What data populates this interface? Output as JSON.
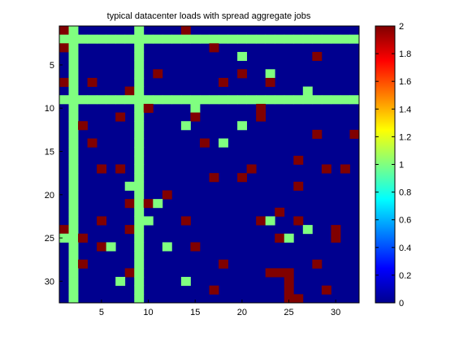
{
  "chart_data": {
    "type": "heatmap",
    "title": "typical datacenter loads with spread aggregate jobs",
    "xlabel": "",
    "ylabel": "",
    "rows": 32,
    "cols": 32,
    "x_ticks": [
      5,
      10,
      15,
      20,
      25,
      30
    ],
    "y_ticks": [
      5,
      10,
      15,
      20,
      25,
      30
    ],
    "y_axis_reversed": true,
    "colorbar": {
      "min": 0,
      "max": 2,
      "ticks": [
        "0",
        "0.2",
        "0.4",
        "0.6",
        "0.8",
        "1",
        "1.2",
        "1.4",
        "1.6",
        "1.8",
        "2"
      ],
      "colormap": "jet"
    },
    "colors": {
      "value_0": "#00008f",
      "value_1": "#80ff80",
      "value_2": "#800000"
    },
    "full_rows_value_1": [
      2,
      9
    ],
    "full_cols_value_1": [
      2,
      9
    ],
    "cells_value_2": [
      [
        1,
        1
      ],
      [
        1,
        14
      ],
      [
        3,
        1
      ],
      [
        3,
        17
      ],
      [
        4,
        28
      ],
      [
        6,
        11
      ],
      [
        6,
        20
      ],
      [
        7,
        1
      ],
      [
        7,
        4
      ],
      [
        7,
        18
      ],
      [
        7,
        23
      ],
      [
        8,
        8
      ],
      [
        10,
        10
      ],
      [
        10,
        22
      ],
      [
        11,
        7
      ],
      [
        11,
        15
      ],
      [
        11,
        22
      ],
      [
        12,
        3
      ],
      [
        13,
        28
      ],
      [
        13,
        32
      ],
      [
        14,
        4
      ],
      [
        14,
        16
      ],
      [
        16,
        26
      ],
      [
        17,
        5
      ],
      [
        17,
        7
      ],
      [
        17,
        21
      ],
      [
        17,
        29
      ],
      [
        17,
        31
      ],
      [
        18,
        17
      ],
      [
        18,
        20
      ],
      [
        19,
        26
      ],
      [
        20,
        12
      ],
      [
        21,
        8
      ],
      [
        21,
        10
      ],
      [
        22,
        24
      ],
      [
        23,
        5
      ],
      [
        23,
        14
      ],
      [
        23,
        22
      ],
      [
        23,
        26
      ],
      [
        24,
        1
      ],
      [
        24,
        8
      ],
      [
        24,
        30
      ],
      [
        25,
        3
      ],
      [
        25,
        24
      ],
      [
        25,
        30
      ],
      [
        26,
        5
      ],
      [
        26,
        15
      ],
      [
        28,
        3
      ],
      [
        28,
        18
      ],
      [
        28,
        28
      ],
      [
        29,
        8
      ],
      [
        29,
        23
      ],
      [
        29,
        24
      ],
      [
        29,
        25
      ],
      [
        30,
        25
      ],
      [
        31,
        17
      ],
      [
        31,
        25
      ],
      [
        31,
        29
      ],
      [
        32,
        25
      ],
      [
        32,
        26
      ]
    ],
    "cells_value_1": [
      [
        4,
        20
      ],
      [
        6,
        23
      ],
      [
        8,
        27
      ],
      [
        10,
        15
      ],
      [
        12,
        14
      ],
      [
        12,
        20
      ],
      [
        14,
        18
      ],
      [
        19,
        8
      ],
      [
        21,
        11
      ],
      [
        23,
        10
      ],
      [
        23,
        23
      ],
      [
        24,
        27
      ],
      [
        25,
        1
      ],
      [
        25,
        25
      ],
      [
        26,
        6
      ],
      [
        26,
        12
      ],
      [
        30,
        7
      ],
      [
        30,
        14
      ]
    ]
  }
}
